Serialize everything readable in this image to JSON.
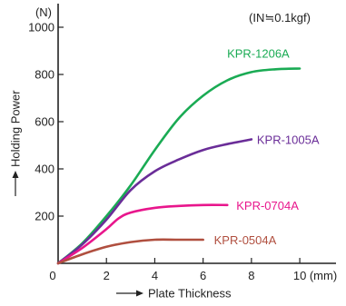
{
  "chart_data": {
    "type": "line",
    "title": "",
    "xlabel": "Plate Thickness",
    "ylabel": "Holding Power",
    "x_unit": "(mm)",
    "y_unit": "(N)",
    "annotation": "(IN≒0.1kgf)",
    "xlim": [
      0,
      11.5
    ],
    "ylim": [
      0,
      1100
    ],
    "x_ticks": [
      0,
      2,
      4,
      6,
      8,
      10
    ],
    "y_ticks": [
      200,
      400,
      600,
      800,
      1000
    ],
    "grid": false,
    "series": [
      {
        "name": "KPR-1206A",
        "color": "#1aab54",
        "x": [
          0,
          1,
          2,
          3,
          4,
          5,
          6,
          7,
          8,
          9,
          10
        ],
        "y": [
          0,
          85,
          200,
          330,
          480,
          615,
          710,
          775,
          810,
          822,
          825
        ]
      },
      {
        "name": "KPR-1005A",
        "color": "#6a2d98",
        "x": [
          0,
          1,
          2,
          3,
          4,
          5,
          6,
          7,
          8
        ],
        "y": [
          0,
          80,
          185,
          310,
          390,
          440,
          480,
          505,
          525
        ]
      },
      {
        "name": "KPR-0704A",
        "color": "#e8168c",
        "x": [
          0,
          1,
          2,
          2.5,
          3,
          4,
          5,
          6,
          7
        ],
        "y": [
          0,
          65,
          145,
          190,
          215,
          235,
          243,
          247,
          247
        ]
      },
      {
        "name": "KPR-0504A",
        "color": "#b04f3f",
        "x": [
          0,
          1,
          2,
          3,
          4,
          5,
          6
        ],
        "y": [
          0,
          38,
          70,
          90,
          100,
          100,
          100
        ]
      }
    ]
  }
}
